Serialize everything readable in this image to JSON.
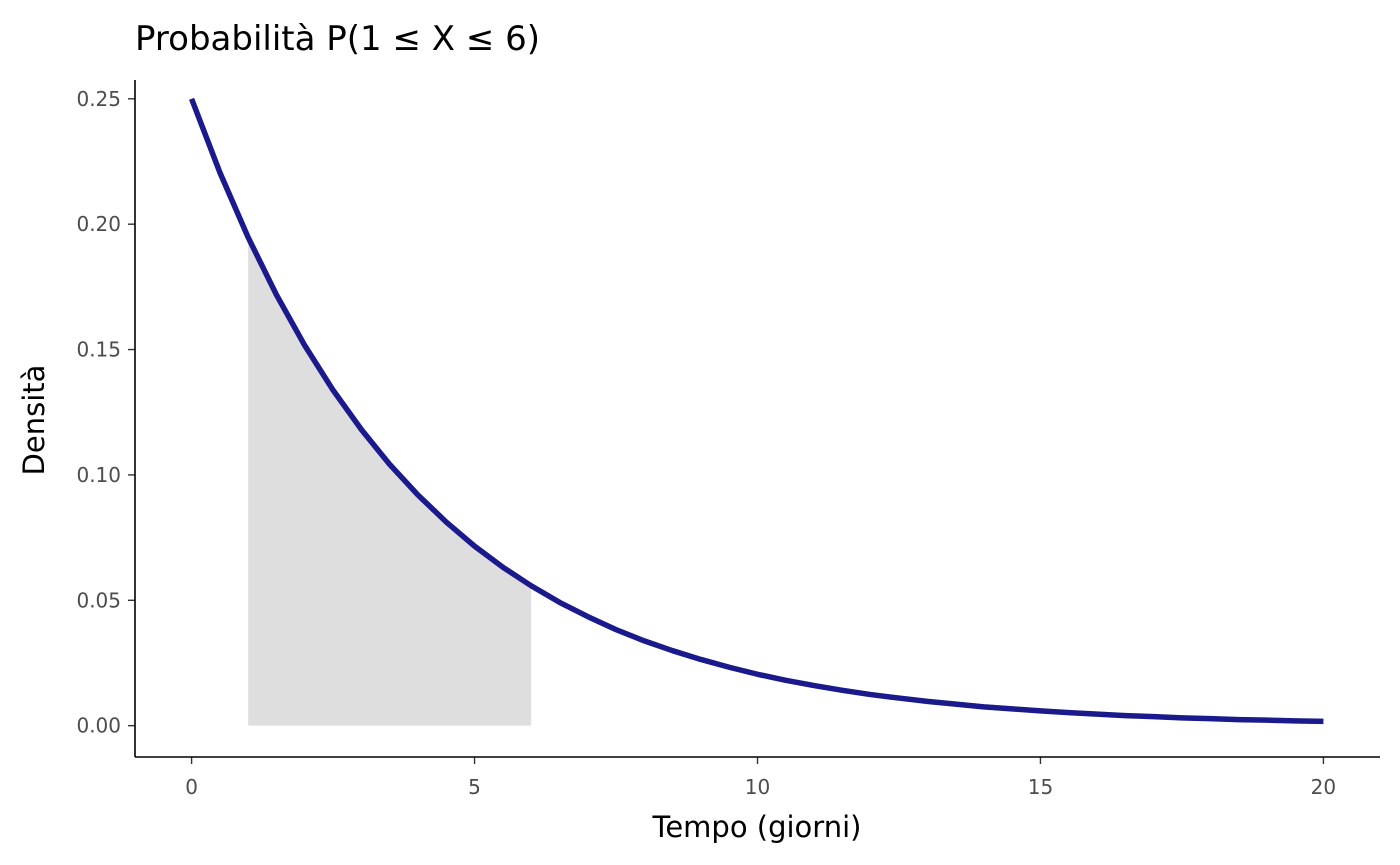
{
  "chart_data": {
    "type": "area",
    "title": "Probabilità P(1 ≤ X ≤ 6)",
    "xlabel": "Tempo (giorni)",
    "ylabel": "Densità",
    "xlim": [
      -1,
      21
    ],
    "ylim": [
      -0.0125,
      0.2575
    ],
    "x_ticks": [
      0,
      5,
      10,
      15,
      20
    ],
    "x_tick_labels": [
      "0",
      "5",
      "10",
      "15",
      "20"
    ],
    "y_ticks": [
      0,
      0.05,
      0.1,
      0.15,
      0.2,
      0.25
    ],
    "y_tick_labels": [
      "0.00",
      "0.05",
      "0.10",
      "0.15",
      "0.20",
      "0.25"
    ],
    "grid": false,
    "series": [
      {
        "type": "line",
        "color": "#1a1a8c",
        "x": [
          0,
          0.5,
          1,
          1.5,
          2,
          2.5,
          3,
          3.5,
          4,
          4.5,
          5,
          5.5,
          6,
          6.5,
          7,
          7.5,
          8,
          8.5,
          9,
          9.5,
          10,
          10.5,
          11,
          11.5,
          12,
          12.5,
          13,
          13.5,
          14,
          14.5,
          15,
          15.5,
          16,
          16.5,
          17,
          17.5,
          18,
          18.5,
          19,
          19.5,
          20
        ],
        "y": [
          0.25,
          0.2206,
          0.1947,
          0.1718,
          0.1516,
          0.1338,
          0.1181,
          0.1042,
          0.092,
          0.0812,
          0.0716,
          0.0632,
          0.0558,
          0.0492,
          0.0435,
          0.0383,
          0.0338,
          0.0299,
          0.0264,
          0.0233,
          0.0205,
          0.0181,
          0.016,
          0.0141,
          0.0124,
          0.011,
          0.0097,
          0.0086,
          0.0075,
          0.0067,
          0.0059,
          0.0052,
          0.0046,
          0.004,
          0.0036,
          0.0031,
          0.0028,
          0.0024,
          0.0022,
          0.0019,
          0.0017
        ]
      },
      {
        "type": "area",
        "color": "#dedede",
        "x": [
          1,
          1.5,
          2,
          2.5,
          3,
          3.5,
          4,
          4.5,
          5,
          5.5,
          6
        ],
        "y": [
          0.1947,
          0.1718,
          0.1516,
          0.1338,
          0.1181,
          0.1042,
          0.092,
          0.0812,
          0.0716,
          0.0632,
          0.0558
        ]
      }
    ]
  }
}
